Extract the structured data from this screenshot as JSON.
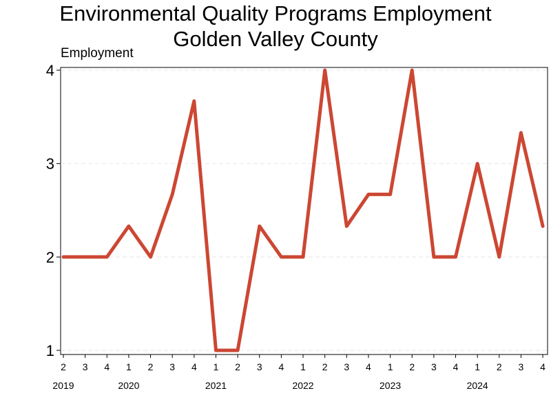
{
  "chart_data": {
    "type": "line",
    "title": "Environmental Quality Programs Employment",
    "subtitle": "Golden Valley County",
    "ylabel": "Employment",
    "xlabel": "",
    "ylim": [
      1,
      4
    ],
    "yticks": [
      1,
      2,
      3,
      4
    ],
    "grid": true,
    "color": "#cc4733",
    "x": [
      {
        "year": "2019",
        "quarter": "2"
      },
      {
        "year": "2019",
        "quarter": "3"
      },
      {
        "year": "2019",
        "quarter": "4"
      },
      {
        "year": "2020",
        "quarter": "1"
      },
      {
        "year": "2020",
        "quarter": "2"
      },
      {
        "year": "2020",
        "quarter": "3"
      },
      {
        "year": "2020",
        "quarter": "4"
      },
      {
        "year": "2021",
        "quarter": "1"
      },
      {
        "year": "2021",
        "quarter": "2"
      },
      {
        "year": "2021",
        "quarter": "3"
      },
      {
        "year": "2021",
        "quarter": "4"
      },
      {
        "year": "2022",
        "quarter": "1"
      },
      {
        "year": "2022",
        "quarter": "2"
      },
      {
        "year": "2022",
        "quarter": "3"
      },
      {
        "year": "2022",
        "quarter": "4"
      },
      {
        "year": "2023",
        "quarter": "1"
      },
      {
        "year": "2023",
        "quarter": "2"
      },
      {
        "year": "2023",
        "quarter": "3"
      },
      {
        "year": "2023",
        "quarter": "4"
      },
      {
        "year": "2024",
        "quarter": "1"
      },
      {
        "year": "2024",
        "quarter": "2"
      },
      {
        "year": "2024",
        "quarter": "3"
      },
      {
        "year": "2024",
        "quarter": "4"
      }
    ],
    "values": [
      2,
      2,
      2,
      2.33,
      2,
      2.67,
      3.67,
      1,
      1,
      2.33,
      2,
      2,
      4,
      2.33,
      2.67,
      2.67,
      4,
      2,
      2,
      3,
      2,
      3.33,
      2.33
    ],
    "year_labels": [
      "2019",
      "2020",
      "2021",
      "2022",
      "2023",
      "2024"
    ]
  }
}
